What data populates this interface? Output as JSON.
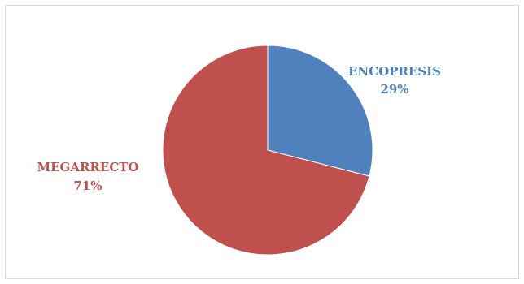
{
  "chart_data": {
    "type": "pie",
    "title": "",
    "slices": [
      {
        "label": "ENCOPRESIS",
        "percent_label": "29%",
        "value": 29,
        "color": "#4f81bd"
      },
      {
        "label": "MEGARRECTO",
        "percent_label": "71%",
        "value": 71,
        "color": "#c0504d"
      }
    ],
    "start_angle_deg": 0,
    "direction": "clockwise",
    "legend": "none",
    "data_labels": "outside"
  }
}
